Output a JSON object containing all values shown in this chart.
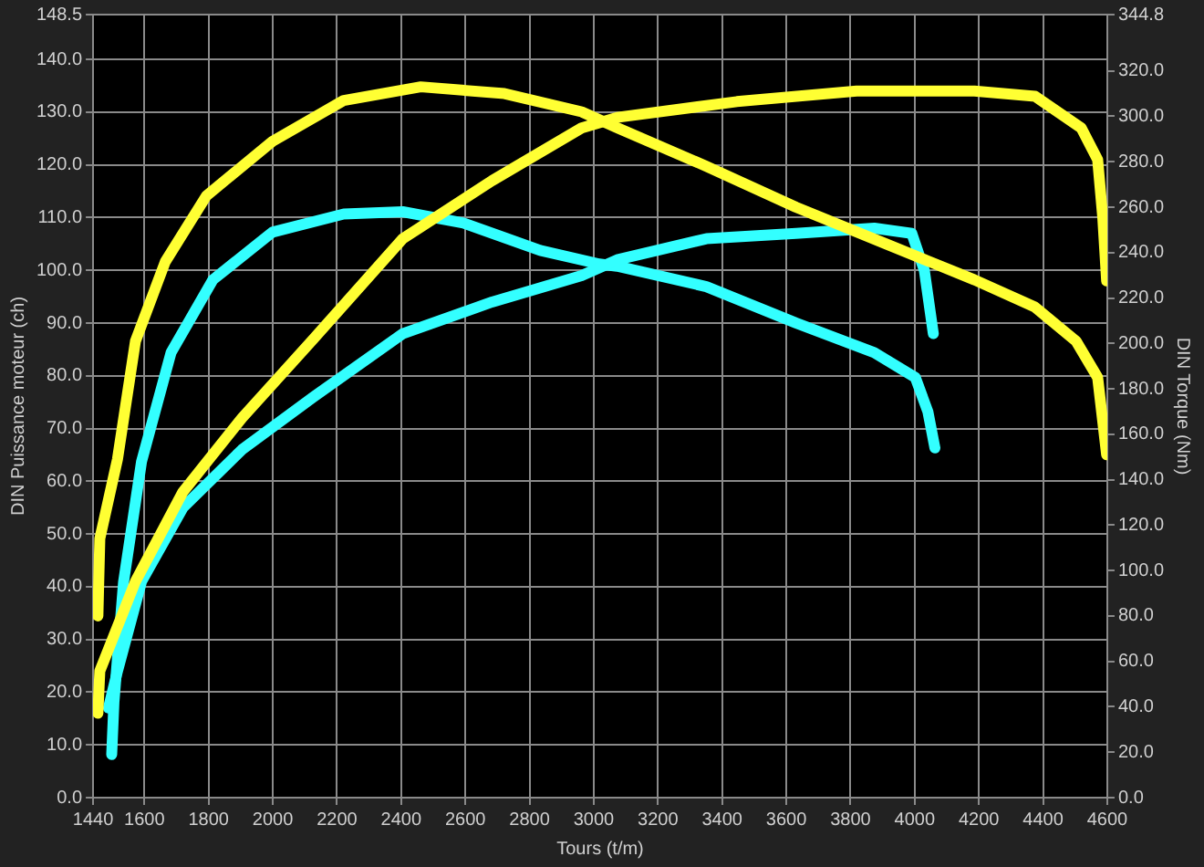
{
  "chart_data": {
    "type": "line",
    "xlabel": "Tours (t/m)",
    "ylabel": "DIN Puissance moteur (ch)",
    "y2label": "DIN Torque (Nm)",
    "xlim": [
      1440,
      4600
    ],
    "xticks": [
      1440,
      1600,
      1800,
      2000,
      2200,
      2400,
      2600,
      2800,
      3000,
      3200,
      3400,
      3600,
      3800,
      4000,
      4200,
      4400,
      4600
    ],
    "ylim": [
      0,
      148.5
    ],
    "yticks": [
      {
        "value": 0,
        "label": "0.0"
      },
      {
        "value": 10,
        "label": "10.0"
      },
      {
        "value": 20,
        "label": "20.0"
      },
      {
        "value": 30,
        "label": "30.0"
      },
      {
        "value": 40,
        "label": "40.0"
      },
      {
        "value": 50,
        "label": "50.0"
      },
      {
        "value": 60,
        "label": "60.0"
      },
      {
        "value": 70,
        "label": "70.0"
      },
      {
        "value": 80,
        "label": "80.0"
      },
      {
        "value": 90,
        "label": "90.0"
      },
      {
        "value": 100,
        "label": "100.0"
      },
      {
        "value": 110,
        "label": "110.0"
      },
      {
        "value": 120,
        "label": "120.0"
      },
      {
        "value": 130,
        "label": "130.0"
      },
      {
        "value": 140,
        "label": "140.0"
      },
      {
        "value": 148.5,
        "label": "148.5"
      }
    ],
    "y2lim": [
      0,
      344.8
    ],
    "y2ticks": [
      {
        "value": 0,
        "label": "0.0"
      },
      {
        "value": 20,
        "label": "20.0"
      },
      {
        "value": 40,
        "label": "40.0"
      },
      {
        "value": 60,
        "label": "60.0"
      },
      {
        "value": 80,
        "label": "80.0"
      },
      {
        "value": 100,
        "label": "100.0"
      },
      {
        "value": 120,
        "label": "120.0"
      },
      {
        "value": 140,
        "label": "140.0"
      },
      {
        "value": 160,
        "label": "160.0"
      },
      {
        "value": 180,
        "label": "180.0"
      },
      {
        "value": 200,
        "label": "200.0"
      },
      {
        "value": 220,
        "label": "220.0"
      },
      {
        "value": 240,
        "label": "240.0"
      },
      {
        "value": 260,
        "label": "260.0"
      },
      {
        "value": 280,
        "label": "280.0"
      },
      {
        "value": 300,
        "label": "300.0"
      },
      {
        "value": 320,
        "label": "320.0"
      },
      {
        "value": 344.8,
        "label": "344.8"
      }
    ],
    "grid": true,
    "marker": "none",
    "line_style": "solid",
    "series": [
      {
        "color": "#ffff33",
        "axis": "y",
        "x": [
          1455,
          1461,
          1572,
          1720,
          1904,
          2127,
          2405,
          2683,
          2962,
          3073,
          3446,
          3819,
          4186,
          4375,
          4519,
          4570,
          4586,
          4598
        ],
        "values": [
          16,
          24,
          41,
          58,
          72,
          87,
          106,
          117,
          127,
          129,
          132,
          134,
          134,
          133,
          127,
          121,
          110,
          98
        ]
      },
      {
        "color": "#ffff33",
        "axis": "y2",
        "x": [
          1455,
          1461,
          1516,
          1572,
          1665,
          1793,
          1999,
          2221,
          2461,
          2722,
          2962,
          3073,
          3351,
          3630,
          3908,
          4186,
          4375,
          4503,
          4570,
          4598
        ],
        "values": [
          80,
          114,
          149,
          201,
          236,
          265,
          289,
          307,
          313,
          310,
          302,
          295,
          278,
          260,
          244,
          228,
          216,
          201,
          185,
          151
        ]
      },
      {
        "color": "#33ffff",
        "axis": "y",
        "x": [
          1488,
          1516,
          1591,
          1720,
          1904,
          2127,
          2405,
          2683,
          2962,
          3073,
          3351,
          3630,
          3874,
          3991,
          4030,
          4058
        ],
        "values": [
          17,
          24,
          41,
          55,
          66,
          76,
          88,
          94,
          99,
          102,
          106,
          107,
          108,
          107,
          100,
          88
        ]
      },
      {
        "color": "#33ffff",
        "axis": "y2",
        "x": [
          1498,
          1505,
          1535,
          1591,
          1683,
          1813,
          1999,
          2221,
          2405,
          2594,
          2833,
          3017,
          3073,
          3351,
          3630,
          3874,
          4002,
          4041,
          4063
        ],
        "values": [
          19,
          42,
          95,
          148,
          196,
          228,
          249,
          257,
          258,
          253,
          241,
          235,
          234,
          225,
          209,
          196,
          185,
          170,
          154
        ]
      }
    ]
  }
}
